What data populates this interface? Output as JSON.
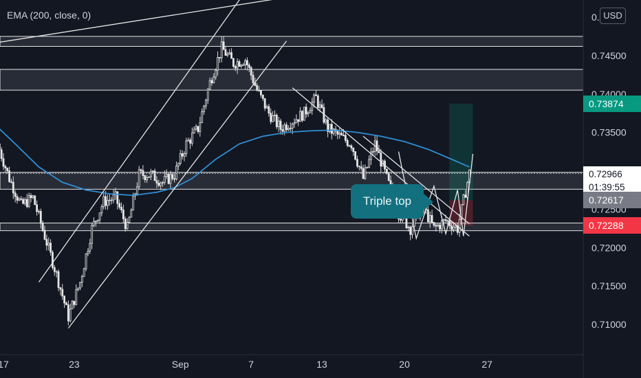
{
  "indicator": {
    "label": "EMA (200, close, 0)"
  },
  "currency_button": {
    "label": "USD"
  },
  "annotation": {
    "label": "Triple top"
  },
  "price_tags": {
    "take_profit": {
      "value": "0.73874",
      "color": "#089981",
      "text_color": "#ffffff"
    },
    "entry": {
      "value": "0.72617",
      "color": "#787b86",
      "text_color": "#ffffff"
    },
    "stop_loss": {
      "value": "0.72288",
      "color": "#f23645",
      "text_color": "#ffffff"
    }
  },
  "last_price": {
    "value": "0.72966",
    "countdown": "01:39:55"
  },
  "chart_data": {
    "type": "candlestick",
    "title": "",
    "xlabel": "",
    "ylabel": "",
    "ylim": [
      0.7055,
      0.7525
    ],
    "grid": false,
    "x_tick_labels": [
      "17",
      "23",
      "Sep",
      "7",
      "13",
      "20",
      "27"
    ],
    "y_tick_labels": [
      "0.75",
      "0.74500",
      "0.74000",
      "0.73500",
      "0.73000",
      "0.72500",
      "0.72000",
      "0.71500",
      "0.71000"
    ],
    "y_ticks": [
      0.75,
      0.745,
      0.74,
      0.735,
      0.73,
      0.725,
      0.72,
      0.715,
      0.71
    ],
    "x_positions": {
      "17": 0,
      "23": 6,
      "Sep": 15,
      "7": 21,
      "13": 27,
      "20": 34,
      "27": 41
    },
    "close_path": [
      [
        -0.5,
        0.7335
      ],
      [
        0.5,
        0.729
      ],
      [
        1.5,
        0.7255
      ],
      [
        2.5,
        0.7265
      ],
      [
        3.5,
        0.7215
      ],
      [
        4.5,
        0.7165
      ],
      [
        5.5,
        0.711
      ],
      [
        6.5,
        0.7155
      ],
      [
        7.5,
        0.7225
      ],
      [
        8.5,
        0.726
      ],
      [
        9.5,
        0.7265
      ],
      [
        10.5,
        0.7225
      ],
      [
        11.5,
        0.7295
      ],
      [
        12.5,
        0.7295
      ],
      [
        13.5,
        0.7285
      ],
      [
        14.5,
        0.7295
      ],
      [
        15.5,
        0.7335
      ],
      [
        16.5,
        0.7355
      ],
      [
        17.5,
        0.7415
      ],
      [
        18.5,
        0.746
      ],
      [
        19.5,
        0.744
      ],
      [
        20.5,
        0.7445
      ],
      [
        21.5,
        0.7405
      ],
      [
        22.5,
        0.7375
      ],
      [
        23.5,
        0.7355
      ],
      [
        24.5,
        0.7365
      ],
      [
        25.5,
        0.7375
      ],
      [
        26.5,
        0.7395
      ],
      [
        27.5,
        0.7355
      ],
      [
        28.5,
        0.7345
      ],
      [
        29.5,
        0.7335
      ],
      [
        30.5,
        0.729
      ],
      [
        31.5,
        0.7335
      ],
      [
        32.5,
        0.729
      ],
      [
        33.5,
        0.7245
      ],
      [
        34.5,
        0.7225
      ],
      [
        35.5,
        0.7255
      ],
      [
        36.5,
        0.7225
      ],
      [
        37.5,
        0.7235
      ],
      [
        38.5,
        0.7225
      ],
      [
        39.5,
        0.7297
      ]
    ],
    "ema_200": [
      [
        -0.5,
        0.7357
      ],
      [
        1,
        0.7335
      ],
      [
        3,
        0.7305
      ],
      [
        5,
        0.7285
      ],
      [
        7,
        0.7275
      ],
      [
        9,
        0.727
      ],
      [
        11,
        0.7268
      ],
      [
        13,
        0.7272
      ],
      [
        14.5,
        0.7278
      ],
      [
        16,
        0.729
      ],
      [
        18,
        0.7315
      ],
      [
        20,
        0.7335
      ],
      [
        22,
        0.7345
      ],
      [
        24,
        0.735
      ],
      [
        26,
        0.7352
      ],
      [
        28,
        0.7353
      ],
      [
        30,
        0.735
      ],
      [
        32,
        0.7345
      ],
      [
        34,
        0.7338
      ],
      [
        36,
        0.7328
      ],
      [
        38,
        0.7315
      ],
      [
        39.5,
        0.7305
      ]
    ],
    "horizontal_zones": [
      {
        "low": 0.7462,
        "high": 0.7475
      },
      {
        "low": 0.7405,
        "high": 0.7432
      },
      {
        "low": 0.7276,
        "high": 0.7298
      },
      {
        "low": 0.7222,
        "high": 0.7232
      }
    ],
    "trend_lines": [
      {
        "from": [
          -0.5,
          0.7467
        ],
        "to": [
          32,
          0.7545
        ]
      },
      {
        "from": [
          3,
          0.7155
        ],
        "to": [
          21,
          0.7544
        ]
      },
      {
        "from": [
          5.5,
          0.7095
        ],
        "to": [
          24,
          0.7469
        ]
      },
      {
        "from": [
          24.5,
          0.7408
        ],
        "to": [
          39.5,
          0.7215
        ]
      },
      {
        "from": [
          30.5,
          0.7345
        ],
        "to": [
          39.5,
          0.7231
        ]
      }
    ],
    "zigzag": [
      [
        33.5,
        0.7325
      ],
      [
        35,
        0.7212
      ],
      [
        36.5,
        0.728
      ],
      [
        37.5,
        0.7218
      ],
      [
        38.5,
        0.7275
      ],
      [
        39,
        0.7215
      ],
      [
        39.8,
        0.7322
      ]
    ],
    "position": {
      "take_profit": 0.73874,
      "entry": 0.72617,
      "stop_loss": 0.72288,
      "x_start": 37.8,
      "x_end": 39.8
    }
  }
}
